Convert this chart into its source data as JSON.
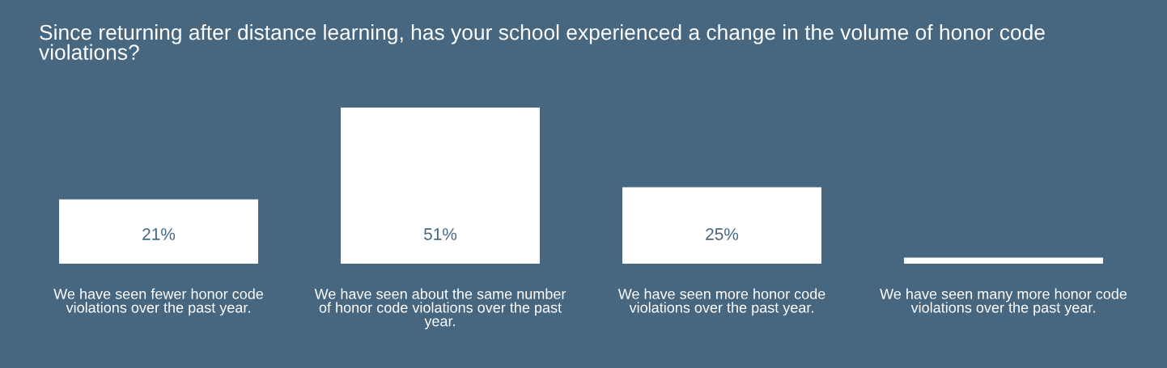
{
  "chart_data": {
    "type": "bar",
    "title": "Since returning after distance learning, has your school experienced a change in the volume of honor code violations?",
    "categories": [
      "We have seen fewer honor code violations over the past year.",
      "We have seen about the same number of honor code violations over the past year.",
      "We have seen more honor code violations over the past year.",
      "We have seen many more honor code violations over the past year."
    ],
    "values": [
      21,
      51,
      25,
      2
    ],
    "value_labels": [
      "21%",
      "51%",
      "25%",
      null
    ],
    "color": "#ffffff"
  }
}
